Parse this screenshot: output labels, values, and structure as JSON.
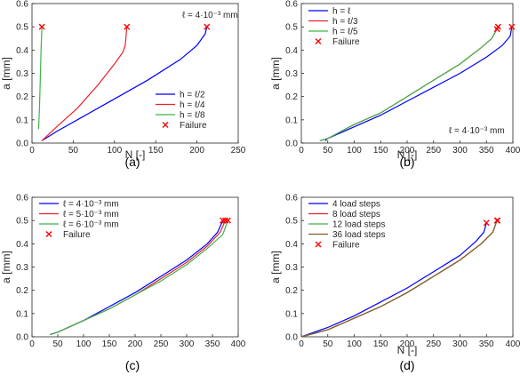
{
  "colors": {
    "blue": "#0000ff",
    "red": "#e8212a",
    "green": "#3cb44b",
    "failure": "#ff0000",
    "axis": "#262626"
  },
  "chart_data": [
    {
      "type": "line",
      "caption": "(a)",
      "xlabel": "N [-]",
      "ylabel": "a [mm]",
      "xlim": [
        0,
        250
      ],
      "ylim": [
        0,
        0.6
      ],
      "xticks": [
        "0",
        "50",
        "100",
        "150",
        "200",
        "250"
      ],
      "yticks": [
        "0.0",
        "0.1",
        "0.2",
        "0.3",
        "0.4",
        "0.5",
        "0.6"
      ],
      "annotation": "ℓ = 4·10⁻³ mm",
      "legend_position": "bottom-right",
      "series": [
        {
          "name": "h = ℓ/2",
          "color": "#0000ff",
          "x": [
            12,
            30,
            60,
            100,
            140,
            180,
            200,
            210,
            211,
            212
          ],
          "y": [
            0.01,
            0.05,
            0.11,
            0.19,
            0.27,
            0.36,
            0.42,
            0.47,
            0.485,
            0.5
          ]
        },
        {
          "name": "h = ℓ/4",
          "color": "#e8212a",
          "x": [
            12,
            30,
            55,
            80,
            100,
            110,
            113,
            114,
            115
          ],
          "y": [
            0.01,
            0.07,
            0.15,
            0.25,
            0.34,
            0.39,
            0.42,
            0.46,
            0.5
          ]
        },
        {
          "name": "h = ℓ/8",
          "color": "#3cb44b",
          "x": [
            8,
            9,
            10,
            11,
            12
          ],
          "y": [
            0.06,
            0.15,
            0.27,
            0.4,
            0.5
          ]
        }
      ],
      "failure": {
        "name": "Failure",
        "x": [
          12,
          115,
          212
        ],
        "y": [
          0.5,
          0.5,
          0.5
        ]
      }
    },
    {
      "type": "line",
      "caption": "(b)",
      "xlabel": "N [-]",
      "ylabel": "a [mm]",
      "xlim": [
        0,
        400
      ],
      "ylim": [
        0,
        0.6
      ],
      "xticks": [
        "0",
        "50",
        "100",
        "150",
        "200",
        "250",
        "300",
        "350",
        "400"
      ],
      "yticks": [
        "0.0",
        "0.1",
        "0.2",
        "0.3",
        "0.4",
        "0.5",
        "0.6"
      ],
      "annotation": "ℓ = 4·10⁻³ mm",
      "legend_position": "top-left",
      "series": [
        {
          "name": "h = ℓ",
          "color": "#0000ff",
          "x": [
            45,
            50,
            100,
            150,
            200,
            250,
            300,
            350,
            380,
            395,
            398
          ],
          "y": [
            0.01,
            0.02,
            0.07,
            0.12,
            0.18,
            0.24,
            0.3,
            0.37,
            0.42,
            0.46,
            0.5
          ]
        },
        {
          "name": "h = ℓ/3",
          "color": "#e8212a",
          "x": [
            35,
            50,
            100,
            150,
            200,
            250,
            300,
            340,
            360,
            370
          ],
          "y": [
            0.01,
            0.02,
            0.08,
            0.13,
            0.2,
            0.27,
            0.34,
            0.41,
            0.45,
            0.49
          ]
        },
        {
          "name": "h = ℓ/5",
          "color": "#3cb44b",
          "x": [
            35,
            50,
            100,
            150,
            200,
            250,
            300,
            340,
            360,
            372
          ],
          "y": [
            0.01,
            0.02,
            0.08,
            0.13,
            0.2,
            0.27,
            0.34,
            0.41,
            0.45,
            0.5
          ]
        }
      ],
      "failure": {
        "name": "Failure",
        "x": [
          370,
          372,
          398
        ],
        "y": [
          0.49,
          0.5,
          0.5
        ]
      }
    },
    {
      "type": "line",
      "caption": "(c)",
      "xlabel": "",
      "ylabel": "a [mm]",
      "xlim": [
        0,
        400
      ],
      "ylim": [
        0,
        0.6
      ],
      "xticks": [
        "0",
        "50",
        "100",
        "150",
        "200",
        "250",
        "300",
        "350",
        "400"
      ],
      "yticks": [
        "0.0",
        "0.1",
        "0.2",
        "0.3",
        "0.4",
        "0.5",
        "0.6"
      ],
      "legend_position": "top-left",
      "series": [
        {
          "name": "ℓ = 4·10⁻³ mm",
          "color": "#0000ff",
          "x": [
            35,
            50,
            100,
            150,
            200,
            250,
            300,
            340,
            360,
            370
          ],
          "y": [
            0.01,
            0.02,
            0.07,
            0.13,
            0.19,
            0.26,
            0.33,
            0.4,
            0.45,
            0.5
          ]
        },
        {
          "name": "ℓ = 5·10⁻³ mm",
          "color": "#e8212a",
          "x": [
            35,
            50,
            100,
            150,
            200,
            250,
            300,
            340,
            365,
            375
          ],
          "y": [
            0.01,
            0.02,
            0.07,
            0.12,
            0.18,
            0.25,
            0.32,
            0.39,
            0.45,
            0.5
          ]
        },
        {
          "name": "ℓ = 6·10⁻³ mm",
          "color": "#3cb44b",
          "x": [
            35,
            50,
            100,
            150,
            200,
            250,
            300,
            340,
            370,
            380
          ],
          "y": [
            0.01,
            0.02,
            0.07,
            0.12,
            0.18,
            0.24,
            0.31,
            0.38,
            0.44,
            0.5
          ]
        }
      ],
      "failure": {
        "name": "Failure",
        "x": [
          370,
          375,
          380
        ],
        "y": [
          0.5,
          0.5,
          0.5
        ]
      }
    },
    {
      "type": "line",
      "caption": "(d)",
      "xlabel": "N [-]",
      "ylabel": "a [mm]",
      "xlim": [
        0,
        400
      ],
      "ylim": [
        0,
        0.6
      ],
      "xticks": [
        "0",
        "50",
        "100",
        "150",
        "200",
        "250",
        "300",
        "350",
        "400"
      ],
      "yticks": [
        "0.0",
        "0.1",
        "0.2",
        "0.3",
        "0.4",
        "0.5",
        "0.6"
      ],
      "legend_position": "top-left",
      "series": [
        {
          "name": "4 load steps",
          "color": "#0000ff",
          "x": [
            0,
            50,
            100,
            150,
            200,
            250,
            300,
            330,
            345,
            350
          ],
          "y": [
            0.0,
            0.04,
            0.09,
            0.15,
            0.21,
            0.28,
            0.35,
            0.41,
            0.45,
            0.49
          ]
        },
        {
          "name": "8 load steps",
          "color": "#e8212a",
          "x": [
            0,
            50,
            100,
            150,
            200,
            250,
            300,
            340,
            362,
            370
          ],
          "y": [
            0.0,
            0.03,
            0.08,
            0.13,
            0.19,
            0.26,
            0.33,
            0.4,
            0.45,
            0.5
          ]
        },
        {
          "name": "12 load steps",
          "color": "#3cb44b",
          "x": [
            0,
            50,
            100,
            150,
            200,
            250,
            300,
            340,
            362,
            370
          ],
          "y": [
            0.0,
            0.03,
            0.08,
            0.13,
            0.19,
            0.26,
            0.33,
            0.4,
            0.45,
            0.5
          ]
        },
        {
          "name": "36 load steps",
          "color": "#8b5a2b",
          "x": [
            0,
            50,
            100,
            150,
            200,
            250,
            300,
            340,
            362,
            370
          ],
          "y": [
            0.0,
            0.03,
            0.08,
            0.13,
            0.19,
            0.26,
            0.33,
            0.4,
            0.45,
            0.5
          ]
        }
      ],
      "failure": {
        "name": "Failure",
        "x": [
          350,
          370,
          371
        ],
        "y": [
          0.49,
          0.5,
          0.5
        ]
      }
    }
  ]
}
